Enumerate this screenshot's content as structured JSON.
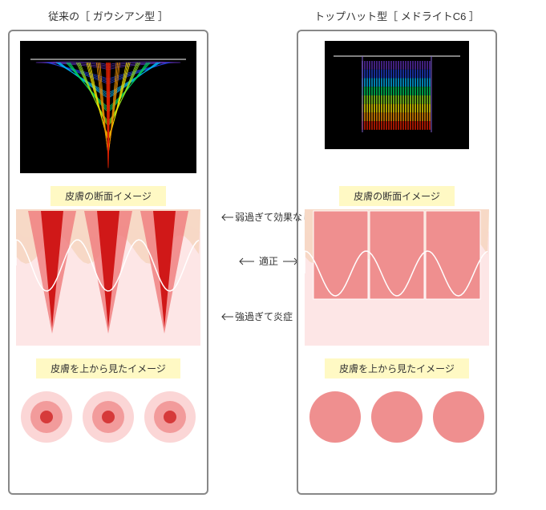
{
  "left": {
    "title": "従来の［ ガウシアン型 ］",
    "spectrum": {
      "type": "gaussian",
      "bg": "#000000",
      "colors": [
        "#5a2db0",
        "#2040d0",
        "#00b0f0",
        "#00d060",
        "#90e020",
        "#f0e000",
        "#f09000",
        "#e02000"
      ],
      "top_line": "#ffffff"
    },
    "cross_label": "皮膚の断面イメージ",
    "cross_section": {
      "bg": "#fde6e6",
      "skin_top": "#fcefe6",
      "skin_wave_fill": "#f6d6c2",
      "pulse_outer": "#f08080",
      "pulse_inner": "#d01818",
      "wave_stroke": "#ffffff",
      "pulse_count": 3
    },
    "top_label": "皮膚を上から見たイメージ",
    "top_view": {
      "type": "concentric",
      "count": 3,
      "outer": "#fbd6d6",
      "mid": "#f29b9b",
      "inner": "#d63a3a"
    }
  },
  "right": {
    "title": "トップハット型［ メドライトC6 ］",
    "spectrum": {
      "type": "tophat",
      "bg": "#000000",
      "colors": [
        "#5a2db0",
        "#2040d0",
        "#00b0f0",
        "#00d060",
        "#90e020",
        "#f0e000",
        "#f09000",
        "#e02000"
      ],
      "top_line": "#ffffff"
    },
    "cross_label": "皮膚の断面イメージ",
    "cross_section": {
      "bg": "#fde6e6",
      "skin_top": "#fcefe6",
      "skin_wave_fill": "#f6d6c2",
      "block_fill": "#ef8f8f",
      "block_stroke": "#ffffff",
      "wave_stroke": "#ffffff",
      "block_count": 3
    },
    "top_label": "皮膚を上から見たイメージ",
    "top_view": {
      "type": "flat",
      "count": 3,
      "fill": "#ef8f8f"
    }
  },
  "annotations": {
    "weak": "弱過ぎて効果なし",
    "ok": "適正",
    "strong": "強過ぎて炎症"
  }
}
